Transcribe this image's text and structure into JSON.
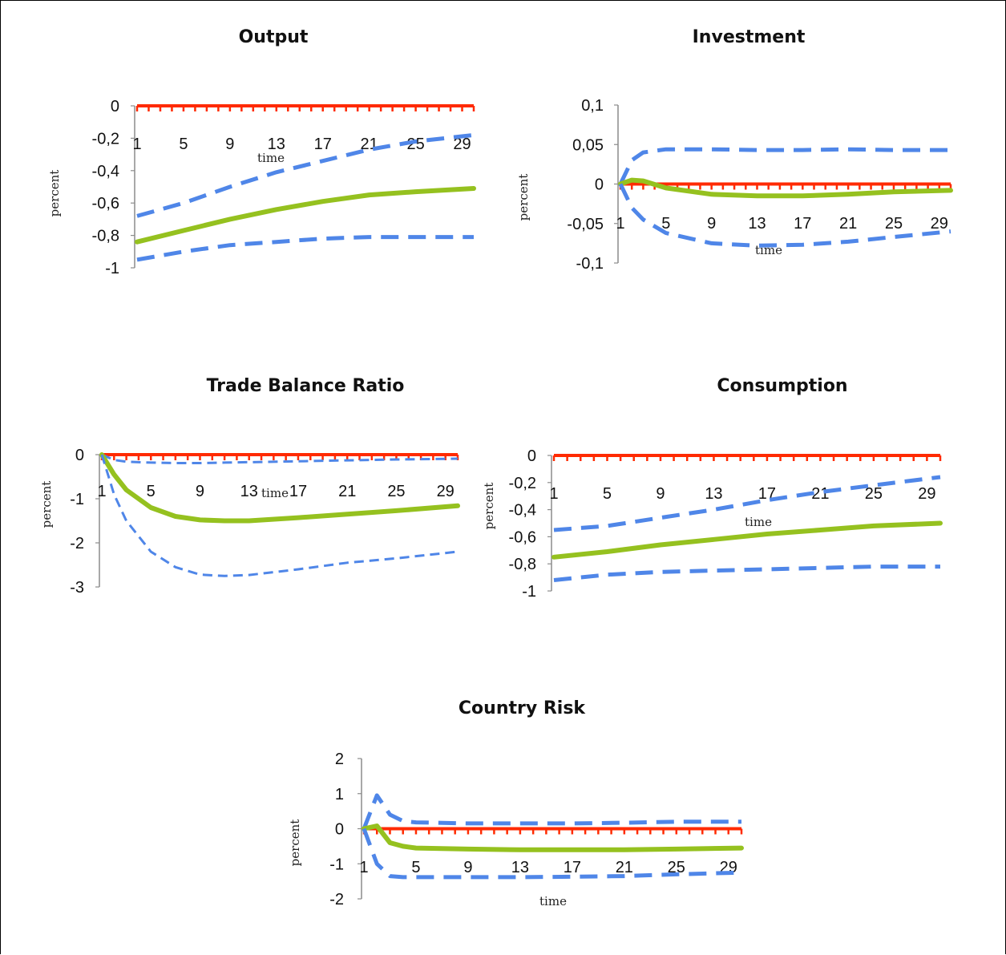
{
  "chart_data": [
    {
      "type": "line",
      "title": "Output",
      "xlabel": "time",
      "ylabel": "percent",
      "x_ticks": [
        "1",
        "5",
        "9",
        "13",
        "17",
        "21",
        "25",
        "29"
      ],
      "y_ticks": [
        "0",
        "-0,2",
        "-0,4",
        "-0,6",
        "-0,8",
        "-1"
      ],
      "ylim": [
        -1,
        0
      ],
      "xlim": [
        1,
        30
      ],
      "x": [
        1,
        5,
        9,
        13,
        17,
        21,
        25,
        30
      ],
      "series": [
        {
          "role": "zero",
          "color": "#ff2a00",
          "values": [
            0,
            0,
            0,
            0,
            0,
            0,
            0,
            0
          ]
        },
        {
          "role": "upper",
          "color": "#4f86e8",
          "values": [
            -0.68,
            -0.6,
            -0.5,
            -0.41,
            -0.34,
            -0.27,
            -0.22,
            -0.18
          ]
        },
        {
          "role": "median",
          "color": "#95c11f",
          "values": [
            -0.84,
            -0.77,
            -0.7,
            -0.64,
            -0.59,
            -0.55,
            -0.53,
            -0.51
          ]
        },
        {
          "role": "lower",
          "color": "#4f86e8",
          "values": [
            -0.95,
            -0.9,
            -0.86,
            -0.84,
            -0.82,
            -0.81,
            -0.81,
            -0.81
          ]
        }
      ]
    },
    {
      "type": "line",
      "title": "Investment",
      "xlabel": "time",
      "ylabel": "percent",
      "x_ticks": [
        "1",
        "5",
        "9",
        "13",
        "17",
        "21",
        "25",
        "29"
      ],
      "y_ticks": [
        "0,1",
        "0,05",
        "0",
        "-0,05",
        "-0,1"
      ],
      "ylim": [
        -0.1,
        0.1
      ],
      "xlim": [
        1,
        30
      ],
      "x": [
        1,
        2,
        3,
        5,
        9,
        13,
        17,
        21,
        25,
        30
      ],
      "series": [
        {
          "role": "zero",
          "color": "#ff2a00",
          "values": [
            0,
            0,
            0,
            0,
            0,
            0,
            0,
            0,
            0,
            0
          ]
        },
        {
          "role": "upper",
          "color": "#4f86e8",
          "values": [
            0,
            0.03,
            0.04,
            0.044,
            0.044,
            0.043,
            0.043,
            0.044,
            0.043,
            0.043
          ]
        },
        {
          "role": "median",
          "color": "#95c11f",
          "values": [
            0,
            0.005,
            0.004,
            -0.005,
            -0.013,
            -0.015,
            -0.015,
            -0.013,
            -0.01,
            -0.008
          ]
        },
        {
          "role": "lower",
          "color": "#4f86e8",
          "values": [
            0,
            -0.03,
            -0.045,
            -0.062,
            -0.075,
            -0.078,
            -0.077,
            -0.073,
            -0.067,
            -0.06
          ]
        }
      ]
    },
    {
      "type": "line",
      "title": "Trade Balance Ratio",
      "xlabel": "time",
      "ylabel": "percent",
      "x_ticks": [
        "1",
        "5",
        "9",
        "13",
        "17",
        "21",
        "25",
        "29"
      ],
      "y_ticks": [
        "0",
        "-1",
        "-2",
        "-3"
      ],
      "ylim": [
        -3,
        0
      ],
      "xlim": [
        1,
        30
      ],
      "x": [
        1,
        2,
        3,
        5,
        7,
        9,
        11,
        13,
        17,
        21,
        25,
        30
      ],
      "series": [
        {
          "role": "zero",
          "color": "#ff2a00",
          "values": [
            0,
            0,
            0,
            0,
            0,
            0,
            0,
            0,
            0,
            0,
            0,
            0
          ]
        },
        {
          "role": "upper",
          "color": "#4f86e8",
          "values": [
            0,
            -0.12,
            -0.16,
            -0.18,
            -0.19,
            -0.19,
            -0.18,
            -0.17,
            -0.15,
            -0.13,
            -0.11,
            -0.09
          ]
        },
        {
          "role": "median",
          "color": "#95c11f",
          "values": [
            0,
            -0.45,
            -0.8,
            -1.2,
            -1.4,
            -1.48,
            -1.5,
            -1.5,
            -1.43,
            -1.35,
            -1.27,
            -1.16
          ]
        },
        {
          "role": "lower",
          "color": "#4f86e8",
          "values": [
            0,
            -0.9,
            -1.5,
            -2.2,
            -2.55,
            -2.72,
            -2.75,
            -2.73,
            -2.6,
            -2.45,
            -2.35,
            -2.2
          ]
        }
      ]
    },
    {
      "type": "line",
      "title": "Consumption",
      "xlabel": "time",
      "ylabel": "percent",
      "x_ticks": [
        "1",
        "5",
        "9",
        "13",
        "17",
        "21",
        "25",
        "29"
      ],
      "y_ticks": [
        "0",
        "-0,2",
        "-0,4",
        "-0,6",
        "-0,8",
        "-1"
      ],
      "ylim": [
        -1,
        0
      ],
      "xlim": [
        1,
        30
      ],
      "x": [
        1,
        5,
        9,
        13,
        17,
        21,
        25,
        30
      ],
      "series": [
        {
          "role": "zero",
          "color": "#ff2a00",
          "values": [
            0,
            0,
            0,
            0,
            0,
            0,
            0,
            0
          ]
        },
        {
          "role": "upper",
          "color": "#4f86e8",
          "values": [
            -0.55,
            -0.52,
            -0.46,
            -0.4,
            -0.33,
            -0.27,
            -0.22,
            -0.16
          ]
        },
        {
          "role": "median",
          "color": "#95c11f",
          "values": [
            -0.75,
            -0.71,
            -0.66,
            -0.62,
            -0.58,
            -0.55,
            -0.52,
            -0.5
          ]
        },
        {
          "role": "lower",
          "color": "#4f86e8",
          "values": [
            -0.92,
            -0.88,
            -0.86,
            -0.85,
            -0.84,
            -0.83,
            -0.82,
            -0.82
          ]
        }
      ]
    },
    {
      "type": "line",
      "title": "Country Risk",
      "xlabel": "time",
      "ylabel": "percent",
      "x_ticks": [
        "1",
        "5",
        "9",
        "13",
        "17",
        "21",
        "25",
        "29"
      ],
      "y_ticks": [
        "2",
        "1",
        "0",
        "-1",
        "-2"
      ],
      "ylim": [
        -2,
        2
      ],
      "xlim": [
        1,
        30
      ],
      "x": [
        1,
        2,
        3,
        4,
        5,
        9,
        13,
        17,
        21,
        25,
        30
      ],
      "series": [
        {
          "role": "zero",
          "color": "#ff2a00",
          "values": [
            0,
            0,
            0,
            0,
            0,
            0,
            0,
            0,
            0,
            0,
            0
          ]
        },
        {
          "role": "upper",
          "color": "#4f86e8",
          "values": [
            0,
            0.95,
            0.4,
            0.22,
            0.18,
            0.15,
            0.15,
            0.15,
            0.17,
            0.2,
            0.2
          ]
        },
        {
          "role": "median",
          "color": "#95c11f",
          "values": [
            0,
            0.08,
            -0.4,
            -0.5,
            -0.55,
            -0.58,
            -0.6,
            -0.6,
            -0.6,
            -0.58,
            -0.55
          ]
        },
        {
          "role": "lower",
          "color": "#4f86e8",
          "values": [
            0,
            -1.0,
            -1.35,
            -1.38,
            -1.38,
            -1.38,
            -1.38,
            -1.37,
            -1.35,
            -1.3,
            -1.25
          ]
        }
      ]
    }
  ]
}
